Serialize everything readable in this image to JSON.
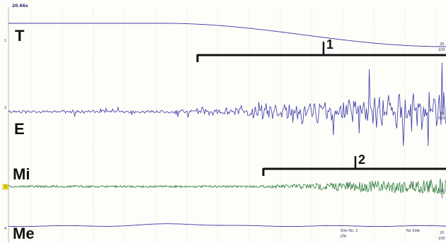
{
  "header": {
    "timestamp": "20.66s"
  },
  "channels": {
    "T": {
      "label": "T",
      "index": "1",
      "right_top": "20",
      "right_bottom": "100"
    },
    "E": {
      "label": "E",
      "index": "2",
      "right_top": "10",
      "right_bottom": "500"
    },
    "Mi": {
      "label": "Mi",
      "index": "3",
      "right_top": "10",
      "right_bottom": "1"
    },
    "Me": {
      "label": "Me",
      "index": "4",
      "right_top": "20",
      "right_bottom": "100"
    }
  },
  "markers": {
    "one": "1",
    "two": "2"
  },
  "footer": {
    "site": "Site No. 2",
    "site_sub": "LTA",
    "side": "No Side"
  },
  "colors": {
    "blue_trace": "#3b37a8",
    "green_trace": "#2f7d3e",
    "grid": "#e8e6c8",
    "bracket": "#111111",
    "marker_box": "#f2e200"
  }
}
